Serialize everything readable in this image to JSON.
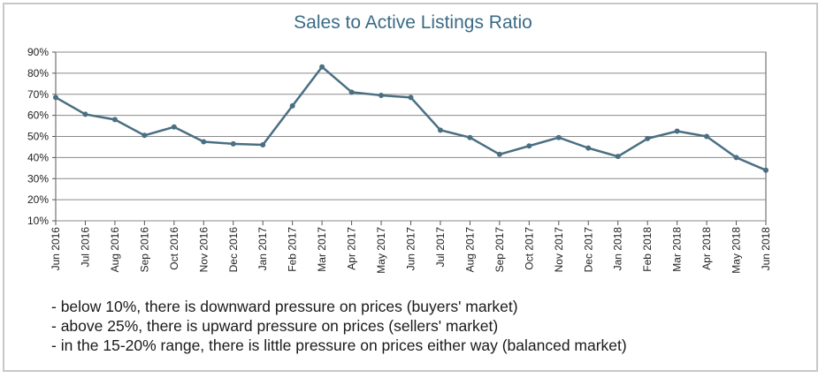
{
  "chart_data": {
    "type": "line",
    "title": "Sales to Active Listings Ratio",
    "categories": [
      "Jun 2016",
      "Jul 2016",
      "Aug 2016",
      "Sep 2016",
      "Oct 2016",
      "Nov 2016",
      "Dec 2016",
      "Jan 2017",
      "Feb 2017",
      "Mar 2017",
      "Apr 2017",
      "May 2017",
      "Jun 2017",
      "Jul 2017",
      "Aug 2017",
      "Sep 2017",
      "Oct 2017",
      "Nov 2017",
      "Dec 2017",
      "Jan 2018",
      "Feb 2018",
      "Mar 2018",
      "Apr 2018",
      "May 2018",
      "Jun 2018"
    ],
    "values": [
      68.5,
      60.5,
      58,
      50.5,
      54.5,
      47.5,
      46.5,
      46,
      64.5,
      83,
      71,
      69.5,
      68.5,
      53,
      49.5,
      41.5,
      45.5,
      49.5,
      44.5,
      40.5,
      49,
      52.5,
      50,
      40,
      34
    ],
    "yticks": [
      "10%",
      "20%",
      "30%",
      "40%",
      "50%",
      "60%",
      "70%",
      "80%",
      "90%"
    ],
    "ylim": [
      10,
      90
    ],
    "grid": true,
    "line_color": "#4a6f82",
    "xlabel": "",
    "ylabel": ""
  },
  "notes": [
    "- below 10%, there is downward pressure on prices (buyers' market)",
    "- above 25%, there is upward pressure on prices (sellers' market)",
    "- in the 15-20% range, there is little pressure on prices either way (balanced market)"
  ]
}
